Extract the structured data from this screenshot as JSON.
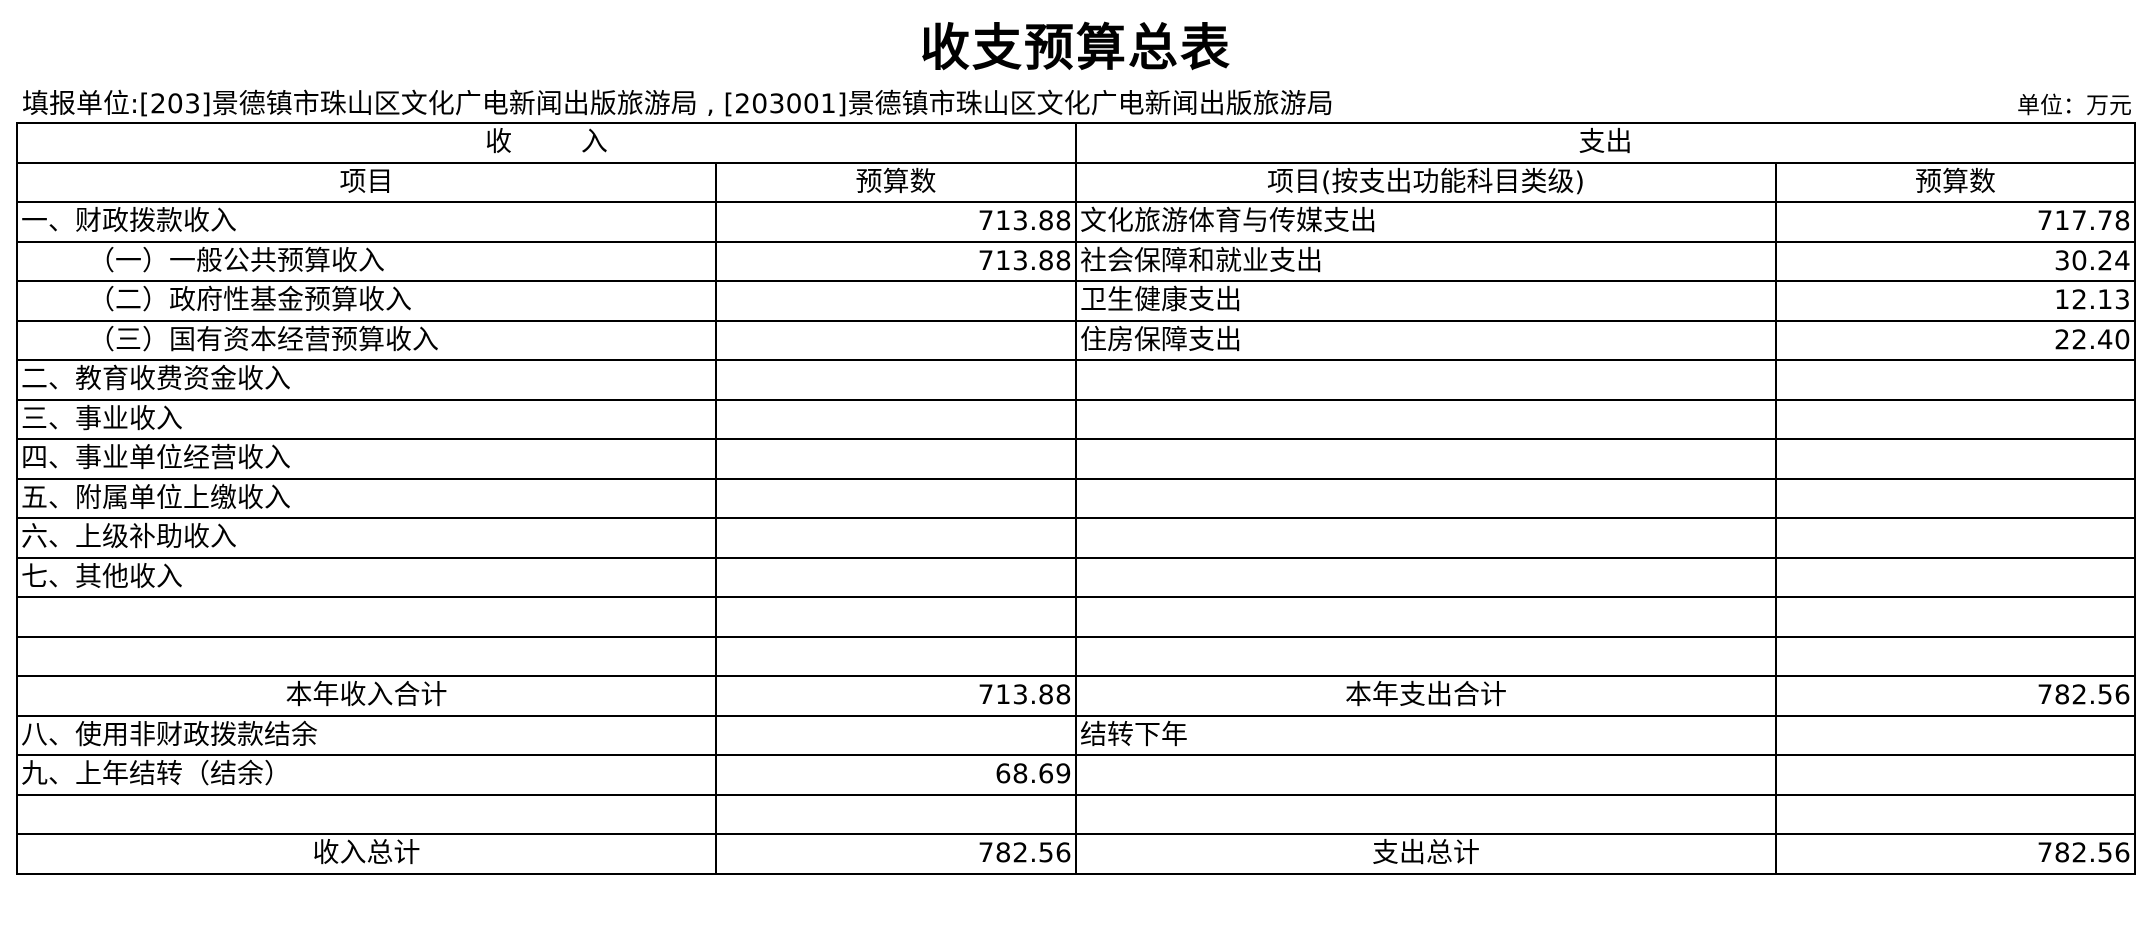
{
  "title": "收支预算总表",
  "unit_line": "填报单位:[203]景德镇市珠山区文化广电新闻出版旅游局 , [203001]景德镇市珠山区文化广电新闻出版旅游局",
  "unit_right": "单位：万元",
  "headers": {
    "income": "收        入",
    "expense": "支出",
    "income_item": "项目",
    "income_budget": "预算数",
    "expense_item": "项目(按支出功能科目类级)",
    "expense_budget": "预算数"
  },
  "rows": [
    {
      "in_label": "一、财政拨款收入",
      "in_value": "713.88",
      "out_label": "文化旅游体育与传媒支出",
      "out_value": "717.78"
    },
    {
      "in_label": "（一）一般公共预算收入",
      "in_value": "713.88",
      "out_label": "社会保障和就业支出",
      "out_value": "30.24"
    },
    {
      "in_label": "（二）政府性基金预算收入",
      "in_value": "",
      "out_label": "卫生健康支出",
      "out_value": "12.13"
    },
    {
      "in_label": "（三）国有资本经营预算收入",
      "in_value": "",
      "out_label": "住房保障支出",
      "out_value": "22.40"
    },
    {
      "in_label": "二、教育收费资金收入",
      "in_value": "",
      "out_label": "",
      "out_value": ""
    },
    {
      "in_label": "三、事业收入",
      "in_value": "",
      "out_label": "",
      "out_value": ""
    },
    {
      "in_label": "四、事业单位经营收入",
      "in_value": "",
      "out_label": "",
      "out_value": ""
    },
    {
      "in_label": "五、附属单位上缴收入",
      "in_value": "",
      "out_label": "",
      "out_value": ""
    },
    {
      "in_label": "六、上级补助收入",
      "in_value": "",
      "out_label": "",
      "out_value": ""
    },
    {
      "in_label": "七、其他收入",
      "in_value": "",
      "out_label": "",
      "out_value": ""
    },
    {
      "in_label": "",
      "in_value": "",
      "out_label": "",
      "out_value": ""
    },
    {
      "in_label": "",
      "in_value": "",
      "out_label": "",
      "out_value": ""
    },
    {
      "in_label": "本年收入合计",
      "in_value": "713.88",
      "out_label": "本年支出合计",
      "out_value": "782.56",
      "total": true
    },
    {
      "in_label": "八、使用非财政拨款结余",
      "in_value": "",
      "out_label": "结转下年",
      "out_value": ""
    },
    {
      "in_label": "九、上年结转（结余）",
      "in_value": "68.69",
      "out_label": "",
      "out_value": ""
    },
    {
      "in_label": "",
      "in_value": "",
      "out_label": "",
      "out_value": ""
    },
    {
      "in_label": "收入总计",
      "in_value": "782.56",
      "out_label": "支出总计",
      "out_value": "782.56",
      "total": true
    }
  ]
}
